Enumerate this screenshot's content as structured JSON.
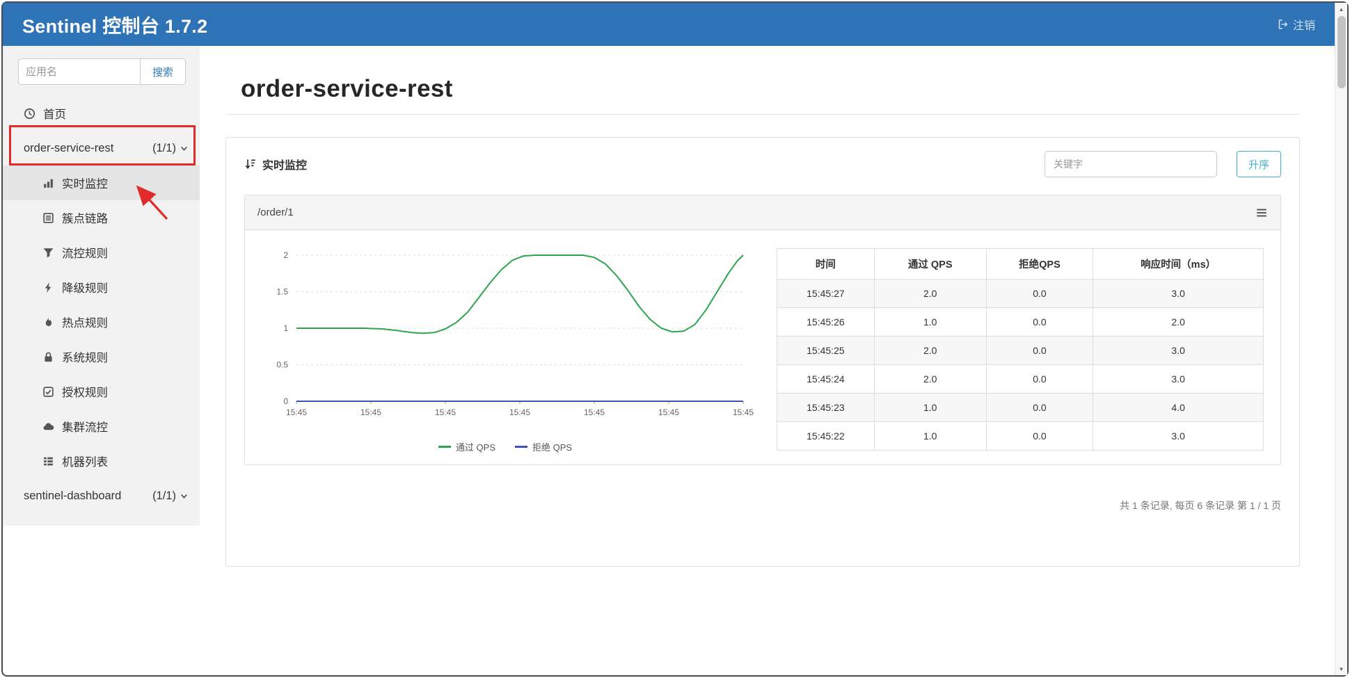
{
  "colors": {
    "navbar": "#2d73b5",
    "accent": "#337ab7",
    "sort_button": "#3fafd4",
    "annotation": "#e12b2b"
  },
  "navbar": {
    "title": "Sentinel 控制台 1.7.2",
    "logout_label": "注销"
  },
  "sidebar": {
    "search_placeholder": "应用名",
    "search_button_label": "搜索",
    "home_label": "首页",
    "apps": [
      {
        "name": "order-service-rest",
        "count": "(1/1)"
      },
      {
        "name": "sentinel-dashboard",
        "count": "(1/1)"
      }
    ],
    "menu_items": [
      {
        "label": "实时监控",
        "icon": "bar-chart-icon",
        "active": true
      },
      {
        "label": "簇点链路",
        "icon": "table-icon"
      },
      {
        "label": "流控规则",
        "icon": "filter-icon"
      },
      {
        "label": "降级规则",
        "icon": "flash-icon"
      },
      {
        "label": "热点规则",
        "icon": "fire-icon"
      },
      {
        "label": "系统规则",
        "icon": "lock-icon"
      },
      {
        "label": "授权规则",
        "icon": "check-icon"
      },
      {
        "label": "集群流控",
        "icon": "cloud-icon"
      },
      {
        "label": "机器列表",
        "icon": "list-icon"
      }
    ]
  },
  "main": {
    "page_title": "order-service-rest",
    "panel": {
      "title": "实时监控",
      "keyword_placeholder": "关键字",
      "sort_button_label": "升序"
    },
    "card_title": "/order/1",
    "pagination": "共 1 条记录, 每页 6 条记录 第 1 / 1 页"
  },
  "table": {
    "headers": [
      "时间",
      "通过 QPS",
      "拒绝QPS",
      "响应时间（ms）"
    ],
    "rows": [
      [
        "15:45:27",
        "2.0",
        "0.0",
        "3.0"
      ],
      [
        "15:45:26",
        "1.0",
        "0.0",
        "2.0"
      ],
      [
        "15:45:25",
        "2.0",
        "0.0",
        "3.0"
      ],
      [
        "15:45:24",
        "2.0",
        "0.0",
        "3.0"
      ],
      [
        "15:45:23",
        "1.0",
        "0.0",
        "4.0"
      ],
      [
        "15:45:22",
        "1.0",
        "0.0",
        "3.0"
      ]
    ]
  },
  "chart_data": {
    "type": "line",
    "title": "/order/1",
    "xlabel": "",
    "ylabel": "",
    "x_ticks": [
      "15:45",
      "15:45",
      "15:45",
      "15:45",
      "15:45",
      "15:45",
      "15:45"
    ],
    "y_ticks": [
      0,
      0.5,
      1,
      1.5,
      2
    ],
    "ylim": [
      0,
      2
    ],
    "grid": "dashed-horizontal",
    "legend_position": "bottom",
    "series": [
      {
        "name": "通过 QPS",
        "color": "#2da44e",
        "points": [
          [
            0,
            1
          ],
          [
            0.55,
            1
          ],
          [
            0.9,
            1
          ],
          [
            1.15,
            0.99
          ],
          [
            1.35,
            0.97
          ],
          [
            1.55,
            0.94
          ],
          [
            1.7,
            0.93
          ],
          [
            1.85,
            0.94
          ],
          [
            2.0,
            0.99
          ],
          [
            2.15,
            1.08
          ],
          [
            2.3,
            1.22
          ],
          [
            2.45,
            1.42
          ],
          [
            2.6,
            1.62
          ],
          [
            2.75,
            1.8
          ],
          [
            2.9,
            1.93
          ],
          [
            3.05,
            1.99
          ],
          [
            3.2,
            2
          ],
          [
            3.85,
            2
          ],
          [
            4.0,
            1.97
          ],
          [
            4.15,
            1.88
          ],
          [
            4.3,
            1.72
          ],
          [
            4.45,
            1.52
          ],
          [
            4.6,
            1.3
          ],
          [
            4.75,
            1.12
          ],
          [
            4.9,
            1.0
          ],
          [
            5.05,
            0.95
          ],
          [
            5.2,
            0.96
          ],
          [
            5.35,
            1.05
          ],
          [
            5.5,
            1.25
          ],
          [
            5.65,
            1.5
          ],
          [
            5.8,
            1.75
          ],
          [
            5.92,
            1.92
          ],
          [
            6,
            2
          ]
        ]
      },
      {
        "name": "拒绝 QPS",
        "color": "#3f51b5",
        "points": [
          [
            0,
            0
          ],
          [
            6,
            0
          ]
        ]
      }
    ]
  }
}
